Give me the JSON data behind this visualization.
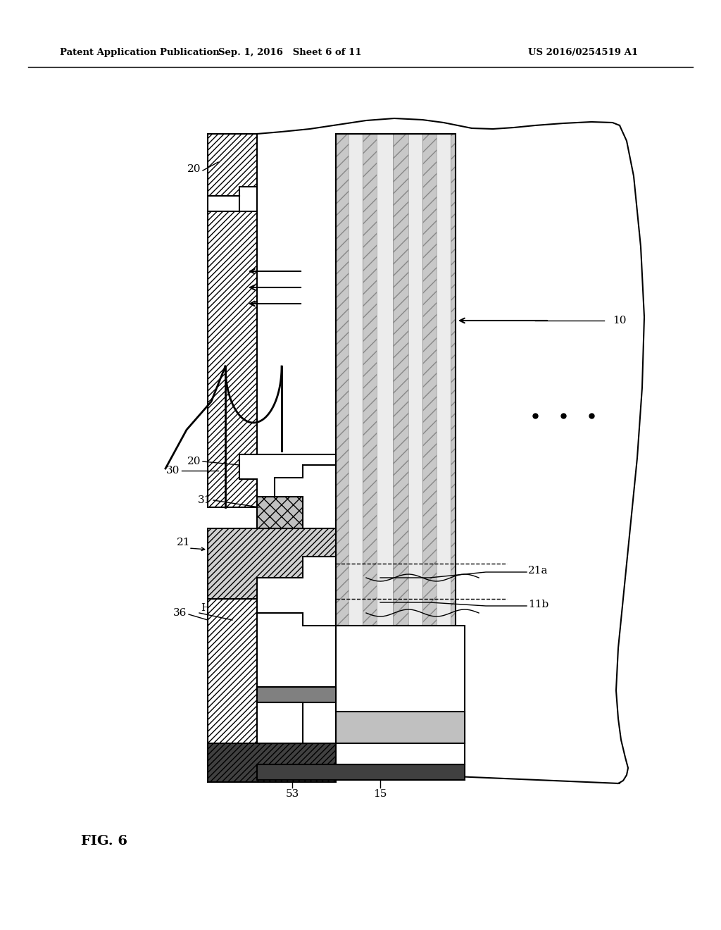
{
  "bg_color": "#ffffff",
  "lc": "#000000",
  "header_left": "Patent Application Publication",
  "header_mid": "Sep. 1, 2016   Sheet 6 of 11",
  "header_right": "US 2016/0254519 A1",
  "fig_label": "FIG. 6"
}
